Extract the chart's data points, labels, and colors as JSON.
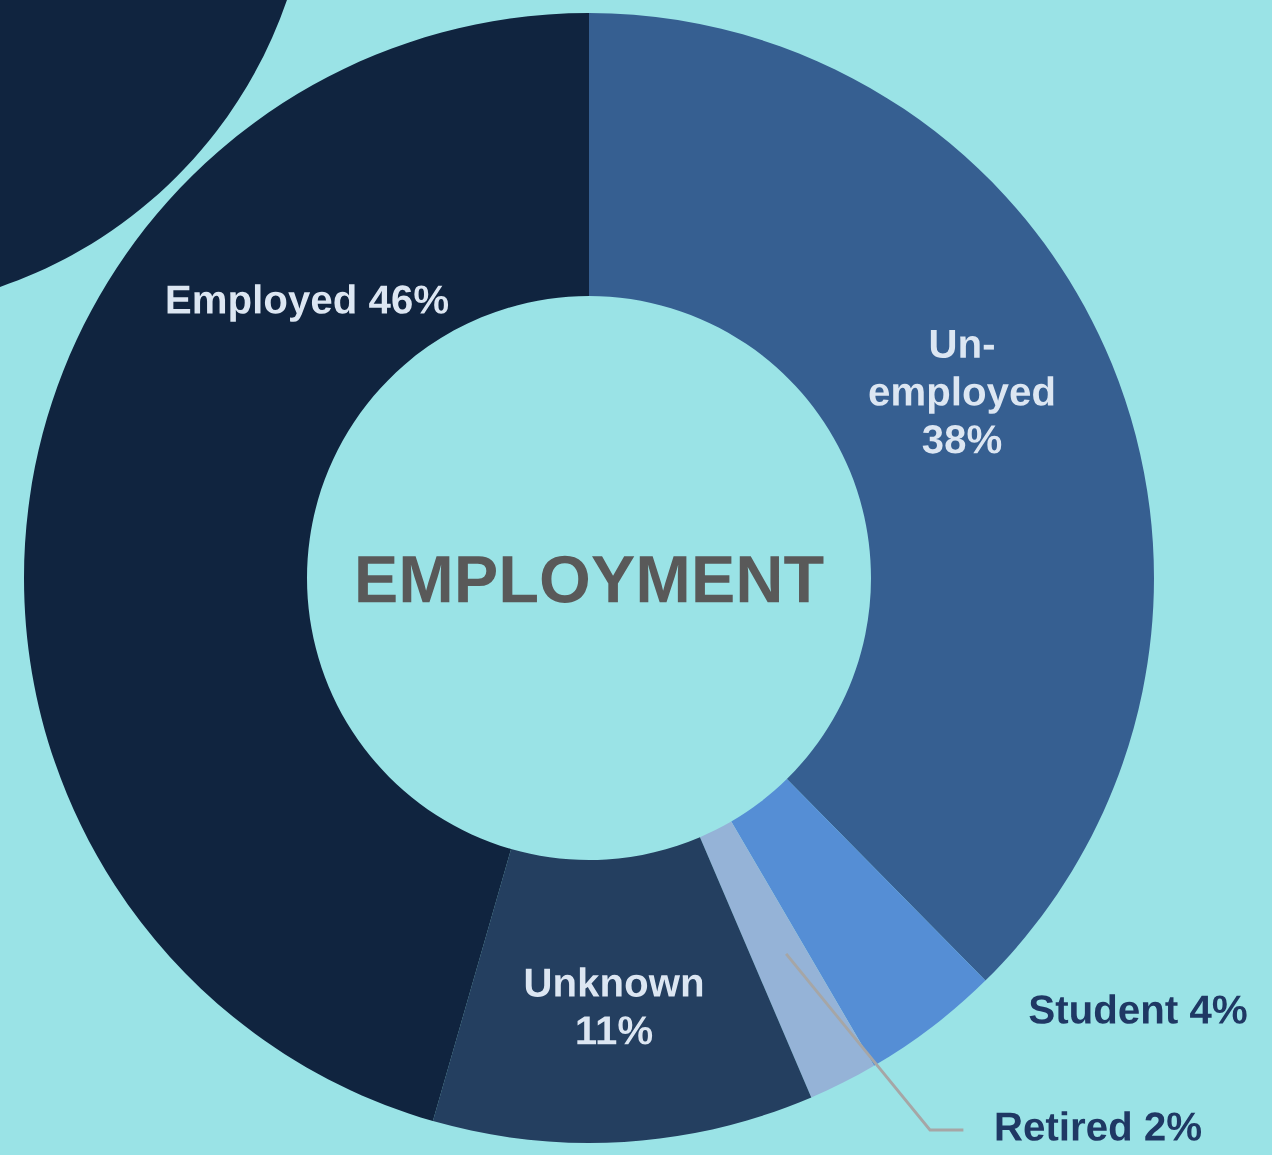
{
  "chart_data": {
    "type": "donut",
    "title": "EMPLOYMENT",
    "categories": [
      "Un-\nemployed",
      "Student",
      "Retired",
      "Unknown",
      "Employed"
    ],
    "values": [
      38,
      4,
      2,
      11,
      46
    ],
    "value_labels": [
      "38%",
      "4%",
      "2%",
      "11%",
      "46%"
    ],
    "colors": [
      "#365f91",
      "#558ed5",
      "#95b3d7",
      "#243f60",
      "#10243f"
    ],
    "legend": false
  }
}
